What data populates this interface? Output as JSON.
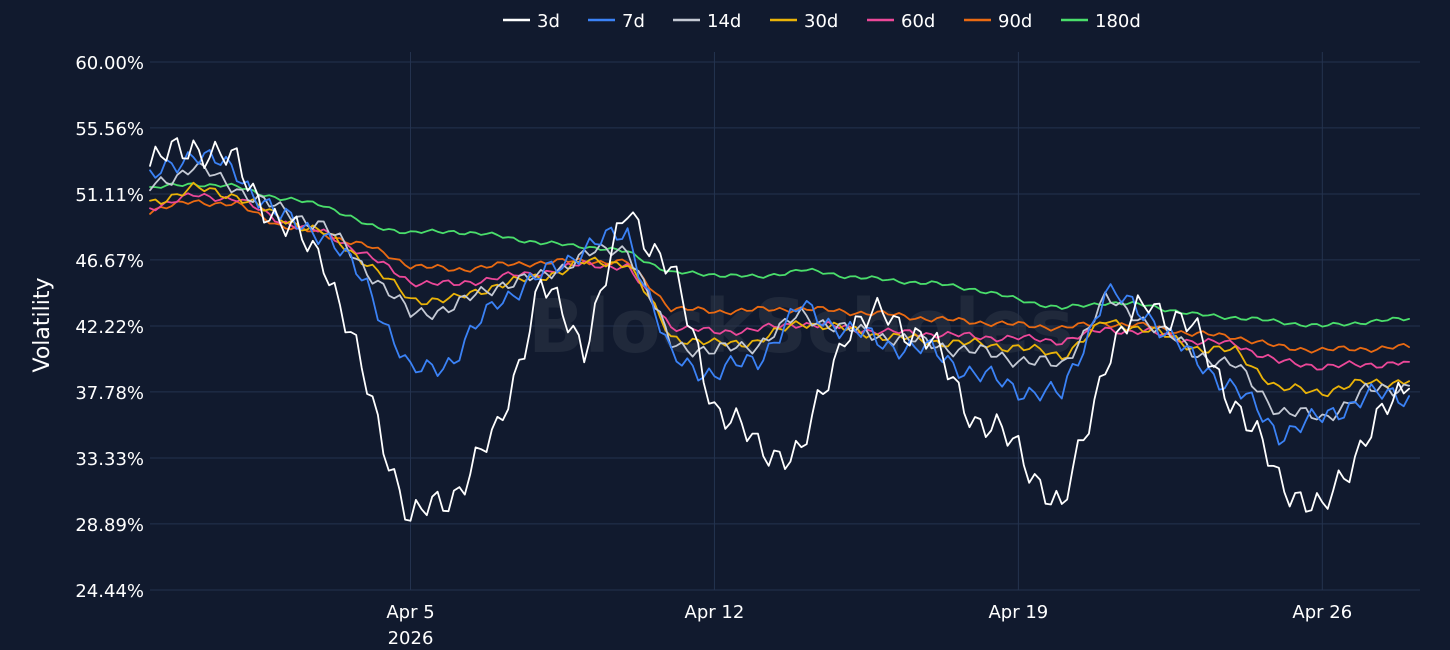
{
  "watermark": "BlockScholes",
  "chart_data": {
    "type": "line",
    "title": "",
    "xlabel": "",
    "ylabel": "Volatility",
    "ylim": [
      24.44,
      60.0
    ],
    "y_ticks": [
      24.44,
      28.89,
      33.33,
      37.78,
      42.22,
      46.67,
      51.11,
      55.56,
      60.0
    ],
    "y_tick_labels": [
      "24.44%",
      "28.89%",
      "33.33%",
      "37.78%",
      "42.22%",
      "46.67%",
      "51.11%",
      "55.56%",
      "60.00%"
    ],
    "x_range": [
      "2026-03-30",
      "2026-04-28T06:00"
    ],
    "x_ticks": [
      {
        "date": "2026-04-05",
        "label": "Apr 5",
        "sublabel": "2026"
      },
      {
        "date": "2026-04-12",
        "label": "Apr 12",
        "sublabel": ""
      },
      {
        "date": "2026-04-19",
        "label": "Apr 19",
        "sublabel": ""
      },
      {
        "date": "2026-04-26",
        "label": "Apr 26",
        "sublabel": ""
      }
    ],
    "grid": true,
    "legend_position": "top-center",
    "x": [
      "2026-03-30",
      "2026-03-31",
      "2026-04-01",
      "2026-04-02",
      "2026-04-03",
      "2026-04-04",
      "2026-04-05",
      "2026-04-06",
      "2026-04-07",
      "2026-04-08",
      "2026-04-09",
      "2026-04-10",
      "2026-04-11",
      "2026-04-12",
      "2026-04-13",
      "2026-04-14",
      "2026-04-15",
      "2026-04-16",
      "2026-04-17",
      "2026-04-18",
      "2026-04-19",
      "2026-04-20",
      "2026-04-21",
      "2026-04-22",
      "2026-04-23",
      "2026-04-24",
      "2026-04-25",
      "2026-04-26",
      "2026-04-27",
      "2026-04-28"
    ],
    "series": [
      {
        "name": "3d",
        "color": "#ffffff",
        "values": [
          53.0,
          54.5,
          53.0,
          49.0,
          47.0,
          38.0,
          29.0,
          31.0,
          35.0,
          45.0,
          41.0,
          50.0,
          46.0,
          37.0,
          34.0,
          33.5,
          42.0,
          43.0,
          41.0,
          36.0,
          34.0,
          29.5,
          40.0,
          44.0,
          42.0,
          37.0,
          32.0,
          29.5,
          35.0,
          38.0
        ]
      },
      {
        "name": "7d",
        "color": "#3b82f6",
        "values": [
          52.0,
          54.0,
          52.5,
          49.5,
          48.5,
          45.0,
          39.0,
          40.0,
          44.0,
          45.5,
          47.5,
          48.5,
          40.0,
          39.0,
          40.0,
          43.5,
          42.0,
          41.0,
          40.5,
          39.0,
          38.0,
          37.5,
          44.5,
          43.0,
          40.0,
          38.0,
          35.0,
          36.0,
          37.5,
          37.5
        ]
      },
      {
        "name": "14d",
        "color": "#c4c9d4",
        "values": [
          51.5,
          53.0,
          51.5,
          50.0,
          49.0,
          46.0,
          43.0,
          43.5,
          45.0,
          45.5,
          47.0,
          47.5,
          41.0,
          40.5,
          41.0,
          43.0,
          42.0,
          41.5,
          41.0,
          40.5,
          40.0,
          39.5,
          44.0,
          42.5,
          40.5,
          39.5,
          36.5,
          36.0,
          37.8,
          38.2
        ]
      },
      {
        "name": "30d",
        "color": "#eab308",
        "values": [
          50.5,
          51.5,
          51.0,
          49.5,
          48.5,
          46.5,
          44.0,
          44.0,
          45.0,
          45.5,
          46.5,
          46.5,
          41.5,
          41.0,
          41.2,
          42.5,
          42.0,
          41.5,
          41.2,
          41.0,
          40.8,
          40.2,
          42.5,
          42.0,
          40.8,
          40.5,
          38.0,
          37.8,
          38.4,
          38.5
        ]
      },
      {
        "name": "60d",
        "color": "#ec4899",
        "values": [
          50.2,
          51.0,
          50.8,
          49.3,
          48.5,
          47.0,
          45.2,
          45.0,
          45.5,
          45.8,
          46.4,
          46.2,
          42.2,
          41.8,
          42.0,
          42.4,
          42.1,
          41.8,
          41.7,
          41.5,
          41.4,
          41.2,
          42.0,
          41.8,
          41.2,
          41.0,
          39.8,
          39.5,
          39.6,
          39.8
        ]
      },
      {
        "name": "90d",
        "color": "#ea6a12",
        "values": [
          50.0,
          50.6,
          50.4,
          49.0,
          48.4,
          47.6,
          46.3,
          46.0,
          46.3,
          46.5,
          46.6,
          46.5,
          43.4,
          43.2,
          43.3,
          43.4,
          43.2,
          43.0,
          42.7,
          42.5,
          42.3,
          42.1,
          42.4,
          42.2,
          41.7,
          41.5,
          40.8,
          40.6,
          40.7,
          40.8
        ]
      },
      {
        "name": "180d",
        "color": "#4ade6b",
        "values": [
          51.5,
          51.8,
          51.6,
          50.8,
          50.4,
          49.0,
          48.5,
          48.6,
          48.3,
          47.8,
          47.6,
          47.2,
          45.8,
          45.7,
          45.5,
          46.0,
          45.6,
          45.3,
          45.1,
          44.7,
          44.0,
          43.4,
          43.8,
          43.6,
          43.0,
          42.8,
          42.5,
          42.2,
          42.5,
          42.7
        ]
      }
    ]
  }
}
